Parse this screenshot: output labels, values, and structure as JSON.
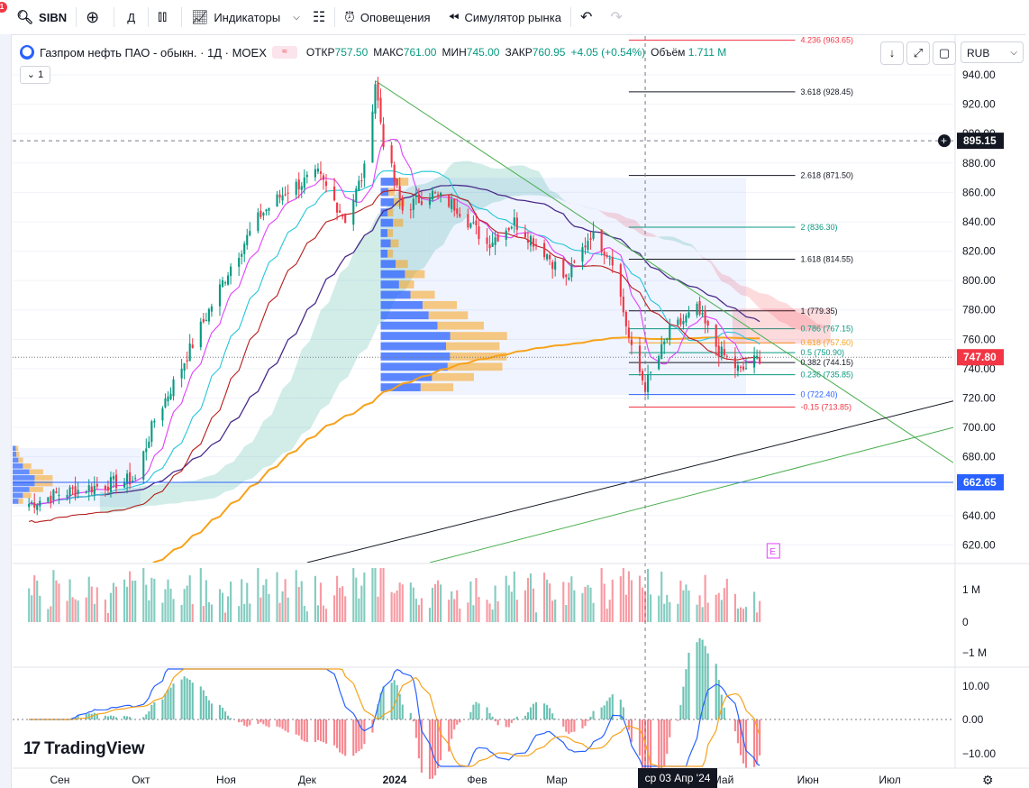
{
  "toolbar": {
    "symbol": "SIBN",
    "interval": "Д",
    "indicators": "Индикаторы",
    "alerts": "Оповещения",
    "replay": "Симулятор рынка",
    "notification_count": "1"
  },
  "legend": {
    "title": "Газпром нефть ПАО - обыкн. · 1Д · MOEX",
    "open_label": "ОТКР",
    "open": "757.50",
    "high_label": "МАКС",
    "high": "761.00",
    "low_label": "МИН",
    "low": "745.00",
    "close_label": "ЗАКР",
    "close": "760.95",
    "change": "+4.05 (+0.54%)",
    "volume_label": "Объём",
    "volume": "1.711 M",
    "collapse_count": "1",
    "pill": "≈"
  },
  "currency": "RUB",
  "time_cursor_label": "ср 03 Апр '24",
  "branding": "TradingView",
  "colors": {
    "up": "#089981",
    "down": "#f23645",
    "accent": "#2962ff",
    "ma200": "#f7a21b"
  },
  "chart_data": {
    "type": "candlestick",
    "symbol": "SIBN",
    "exchange": "MOEX",
    "timeframe": "1D",
    "ylim": [
      608,
      948
    ],
    "y_ticks": [
      620,
      640,
      660,
      680,
      700,
      720,
      740,
      760,
      780,
      800,
      820,
      840,
      860,
      880,
      900,
      920,
      940
    ],
    "x_labels": [
      {
        "label": "Сен",
        "date": "2023-09-01"
      },
      {
        "label": "Окт",
        "date": "2023-10-01"
      },
      {
        "label": "Ноя",
        "date": "2023-11-01"
      },
      {
        "label": "Дек",
        "date": "2023-12-01"
      },
      {
        "label": "2024",
        "date": "2024-01-01"
      },
      {
        "label": "Фев",
        "date": "2024-02-01"
      },
      {
        "label": "Мар",
        "date": "2024-03-01"
      },
      {
        "label": "Май",
        "date": "2024-05-01"
      },
      {
        "label": "Июн",
        "date": "2024-06-01"
      },
      {
        "label": "Июл",
        "date": "2024-07-01"
      }
    ],
    "last_price": {
      "value": 747.8,
      "label": "747.80"
    },
    "crosshair_price": {
      "value": 895.15,
      "label": "895.15"
    },
    "horizontal_line": {
      "value": 662.65,
      "label": "662.65"
    },
    "price_anchors": [
      {
        "date": "2023-08-21",
        "close": 648
      },
      {
        "date": "2023-09-01",
        "close": 655
      },
      {
        "date": "2023-09-15",
        "close": 660
      },
      {
        "date": "2023-09-29",
        "close": 665
      },
      {
        "date": "2023-10-06",
        "close": 705
      },
      {
        "date": "2023-10-13",
        "close": 730
      },
      {
        "date": "2023-10-24",
        "close": 772
      },
      {
        "date": "2023-11-03",
        "close": 810
      },
      {
        "date": "2023-11-14",
        "close": 845
      },
      {
        "date": "2023-11-24",
        "close": 862
      },
      {
        "date": "2023-12-05",
        "close": 872
      },
      {
        "date": "2023-12-15",
        "close": 842
      },
      {
        "date": "2023-12-22",
        "close": 875
      },
      {
        "date": "2023-12-26",
        "close": 935
      },
      {
        "date": "2023-12-29",
        "close": 895
      },
      {
        "date": "2024-01-05",
        "close": 848
      },
      {
        "date": "2024-01-15",
        "close": 860
      },
      {
        "date": "2024-01-25",
        "close": 850
      },
      {
        "date": "2024-02-05",
        "close": 825
      },
      {
        "date": "2024-02-15",
        "close": 840
      },
      {
        "date": "2024-02-27",
        "close": 818
      },
      {
        "date": "2024-03-05",
        "close": 800
      },
      {
        "date": "2024-03-14",
        "close": 832
      },
      {
        "date": "2024-03-22",
        "close": 815
      },
      {
        "date": "2024-03-29",
        "close": 752
      },
      {
        "date": "2024-04-03",
        "close": 728
      },
      {
        "date": "2024-04-12",
        "close": 765
      },
      {
        "date": "2024-04-22",
        "close": 780
      },
      {
        "date": "2024-04-30",
        "close": 752
      },
      {
        "date": "2024-05-08",
        "close": 738
      },
      {
        "date": "2024-05-15",
        "close": 748
      }
    ],
    "fibonacci": [
      {
        "level": "4.236",
        "price": 963.65,
        "label": "4.236 (963.65)"
      },
      {
        "level": "3.618",
        "price": 928.45,
        "label": "3.618 (928.45)"
      },
      {
        "level": "2.618",
        "price": 871.5,
        "label": "2.618 (871.50)"
      },
      {
        "level": "2",
        "price": 836.3,
        "label": "2 (836.30)"
      },
      {
        "level": "1.618",
        "price": 814.55,
        "label": "1.618 (814.55)"
      },
      {
        "level": "1",
        "price": 779.35,
        "label": "1 (779.35)"
      },
      {
        "level": "0.786",
        "price": 767.15,
        "label": "0.786 (767.15)"
      },
      {
        "level": "0.618",
        "price": 757.6,
        "label": "0.618 (757.60)"
      },
      {
        "level": "0.5",
        "price": 750.9,
        "label": "0.5 (750.90)"
      },
      {
        "level": "0.382",
        "price": 744.15,
        "label": "0.382 (744.15)"
      },
      {
        "level": "0.236",
        "price": 735.85,
        "label": "0.236 (735.85)"
      },
      {
        "level": "0",
        "price": 722.4,
        "label": "0 (722.40)"
      },
      {
        "level": "-0.15",
        "price": 713.85,
        "label": "-0.15 (713.85)"
      }
    ],
    "volume_panel": {
      "ticks": [
        "1 M",
        "0",
        "−1 M"
      ]
    },
    "macd_panel": {
      "ticks": [
        "10.00",
        "0.00",
        "−10.00"
      ]
    },
    "event_marker": "E"
  }
}
